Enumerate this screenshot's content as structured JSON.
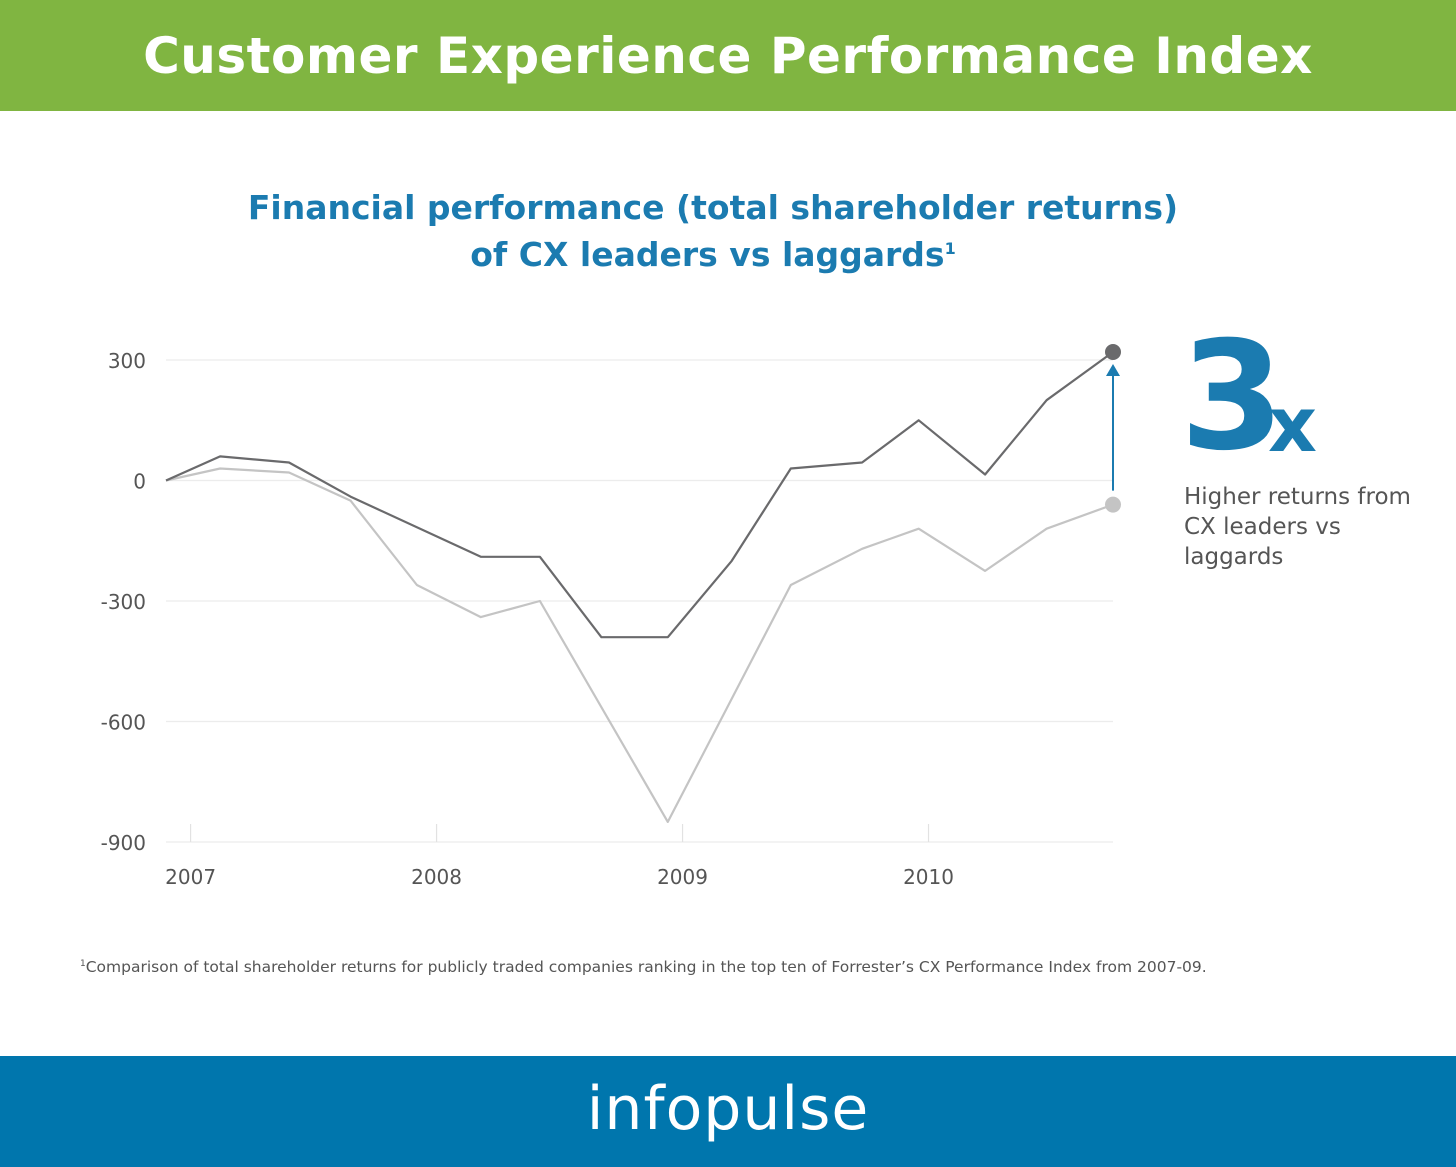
{
  "header": {
    "title": "Customer Experience Performance Index"
  },
  "subtitle": {
    "line1": "Financial performance (total shareholder returns)",
    "line2": "of CX leaders vs laggards",
    "footnote_marker": "1"
  },
  "callout": {
    "number": "3",
    "suffix": "x",
    "text": "Higher returns from CX leaders vs laggards"
  },
  "footnote": {
    "marker": "1",
    "text": "Comparison of total shareholder returns for publicly traded companies ranking in the top ten of Forrester’s CX Performance Index from 2007-09."
  },
  "brand": {
    "logo_text": "infopulse"
  },
  "colors": {
    "header_green": "#80b541",
    "footer_blue": "#0076ad",
    "accent_blue": "#1b7bb0",
    "leaders_line": "#6a6a6c",
    "laggards_line": "#c4c4c4"
  },
  "chart_data": {
    "type": "line",
    "title": "Financial performance (total shareholder returns) of CX leaders vs laggards",
    "y_ticks": [
      300,
      0,
      -300,
      -600,
      -900
    ],
    "y_tick_labels": [
      "300",
      "0",
      "-300",
      "-600",
      "-900"
    ],
    "ylim": [
      -900,
      320
    ],
    "x_ticks": [
      2007,
      2008,
      2009,
      2010
    ],
    "x_tick_labels": [
      "2007",
      "2008",
      "2009",
      "2010"
    ],
    "xlim": [
      2006.9,
      2010.75
    ],
    "grid": true,
    "series": [
      {
        "x": [
          2006.9,
          2007.12,
          2007.4,
          2007.65,
          2008.18,
          2008.42,
          2008.67,
          2008.94,
          2009.2,
          2009.44,
          2009.73,
          2009.96,
          2010.23,
          2010.48,
          2010.75
        ],
        "values": [
          0,
          60,
          45,
          -40,
          -190,
          -190,
          -390,
          -390,
          -200,
          30,
          45,
          150,
          15,
          200,
          320
        ],
        "color": "#6a6a6c",
        "marker": "end"
      },
      {
        "x": [
          2006.9,
          2007.12,
          2007.4,
          2007.65,
          2007.92,
          2008.18,
          2008.42,
          2008.94,
          2009.44,
          2009.73,
          2009.96,
          2010.23,
          2010.48,
          2010.75
        ],
        "values": [
          0,
          30,
          20,
          -50,
          -260,
          -340,
          -300,
          -850,
          -260,
          -170,
          -120,
          -225,
          -120,
          -60
        ],
        "color": "#c4c4c4",
        "marker": "end"
      }
    ],
    "annotation": {
      "type": "arrow",
      "from_series": 1,
      "to_series": 0,
      "at_x": 2010.75
    }
  }
}
